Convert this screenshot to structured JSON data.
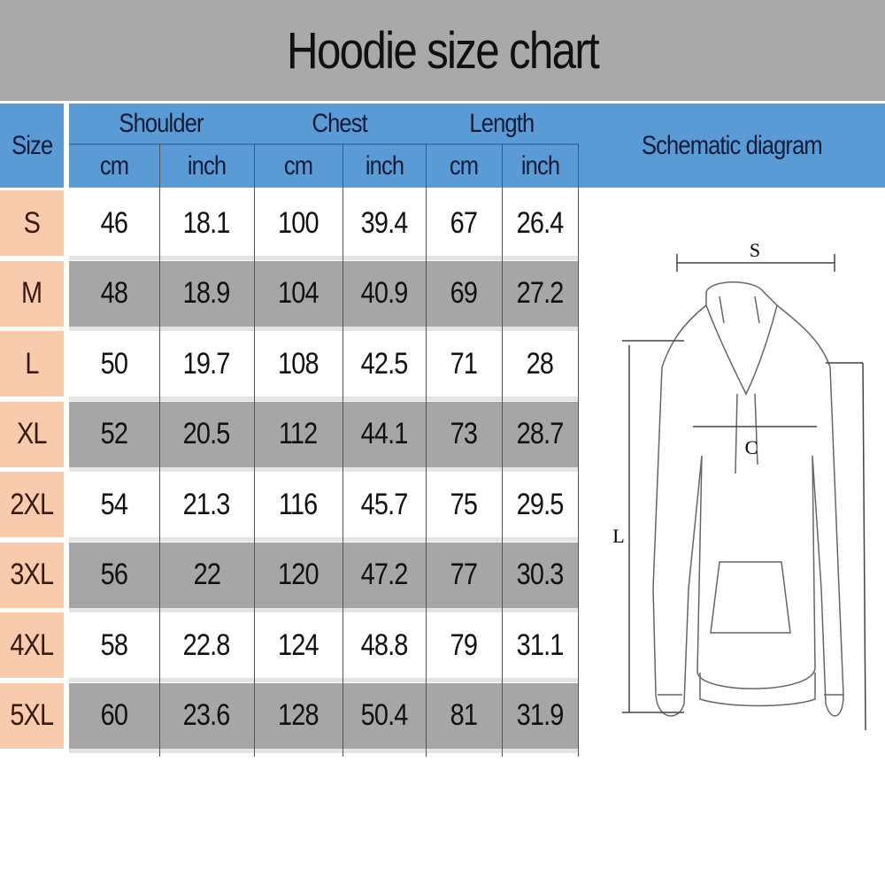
{
  "title": "Hoodie size chart",
  "header": {
    "size": "Size",
    "groups": [
      "Shoulder",
      "Chest",
      "Length"
    ],
    "units": [
      "cm",
      "inch",
      "cm",
      "inch",
      "cm",
      "inch"
    ],
    "diagram": "Schematic diagram"
  },
  "rows": [
    {
      "size": "S",
      "values": [
        "46",
        "18.1",
        "100",
        "39.4",
        "67",
        "26.4"
      ]
    },
    {
      "size": "M",
      "values": [
        "48",
        "18.9",
        "104",
        "40.9",
        "69",
        "27.2"
      ]
    },
    {
      "size": "L",
      "values": [
        "50",
        "19.7",
        "108",
        "42.5",
        "71",
        "28"
      ]
    },
    {
      "size": "XL",
      "values": [
        "52",
        "20.5",
        "112",
        "44.1",
        "73",
        "28.7"
      ]
    },
    {
      "size": "2XL",
      "values": [
        "54",
        "21.3",
        "116",
        "45.7",
        "75",
        "29.5"
      ]
    },
    {
      "size": "3XL",
      "values": [
        "56",
        "22",
        "120",
        "47.2",
        "77",
        "30.3"
      ]
    },
    {
      "size": "4XL",
      "values": [
        "58",
        "22.8",
        "124",
        "48.8",
        "79",
        "31.1"
      ]
    },
    {
      "size": "5XL",
      "values": [
        "60",
        "23.6",
        "128",
        "50.4",
        "81",
        "31.9"
      ]
    }
  ],
  "diagram_labels": {
    "shoulder": "S",
    "chest": "C",
    "length": "L"
  },
  "colors": {
    "title_band": "#a9a9a9",
    "header": "#5b9bd5",
    "size_column": "#f8cbad",
    "row_alt": "#a6a6a6"
  }
}
